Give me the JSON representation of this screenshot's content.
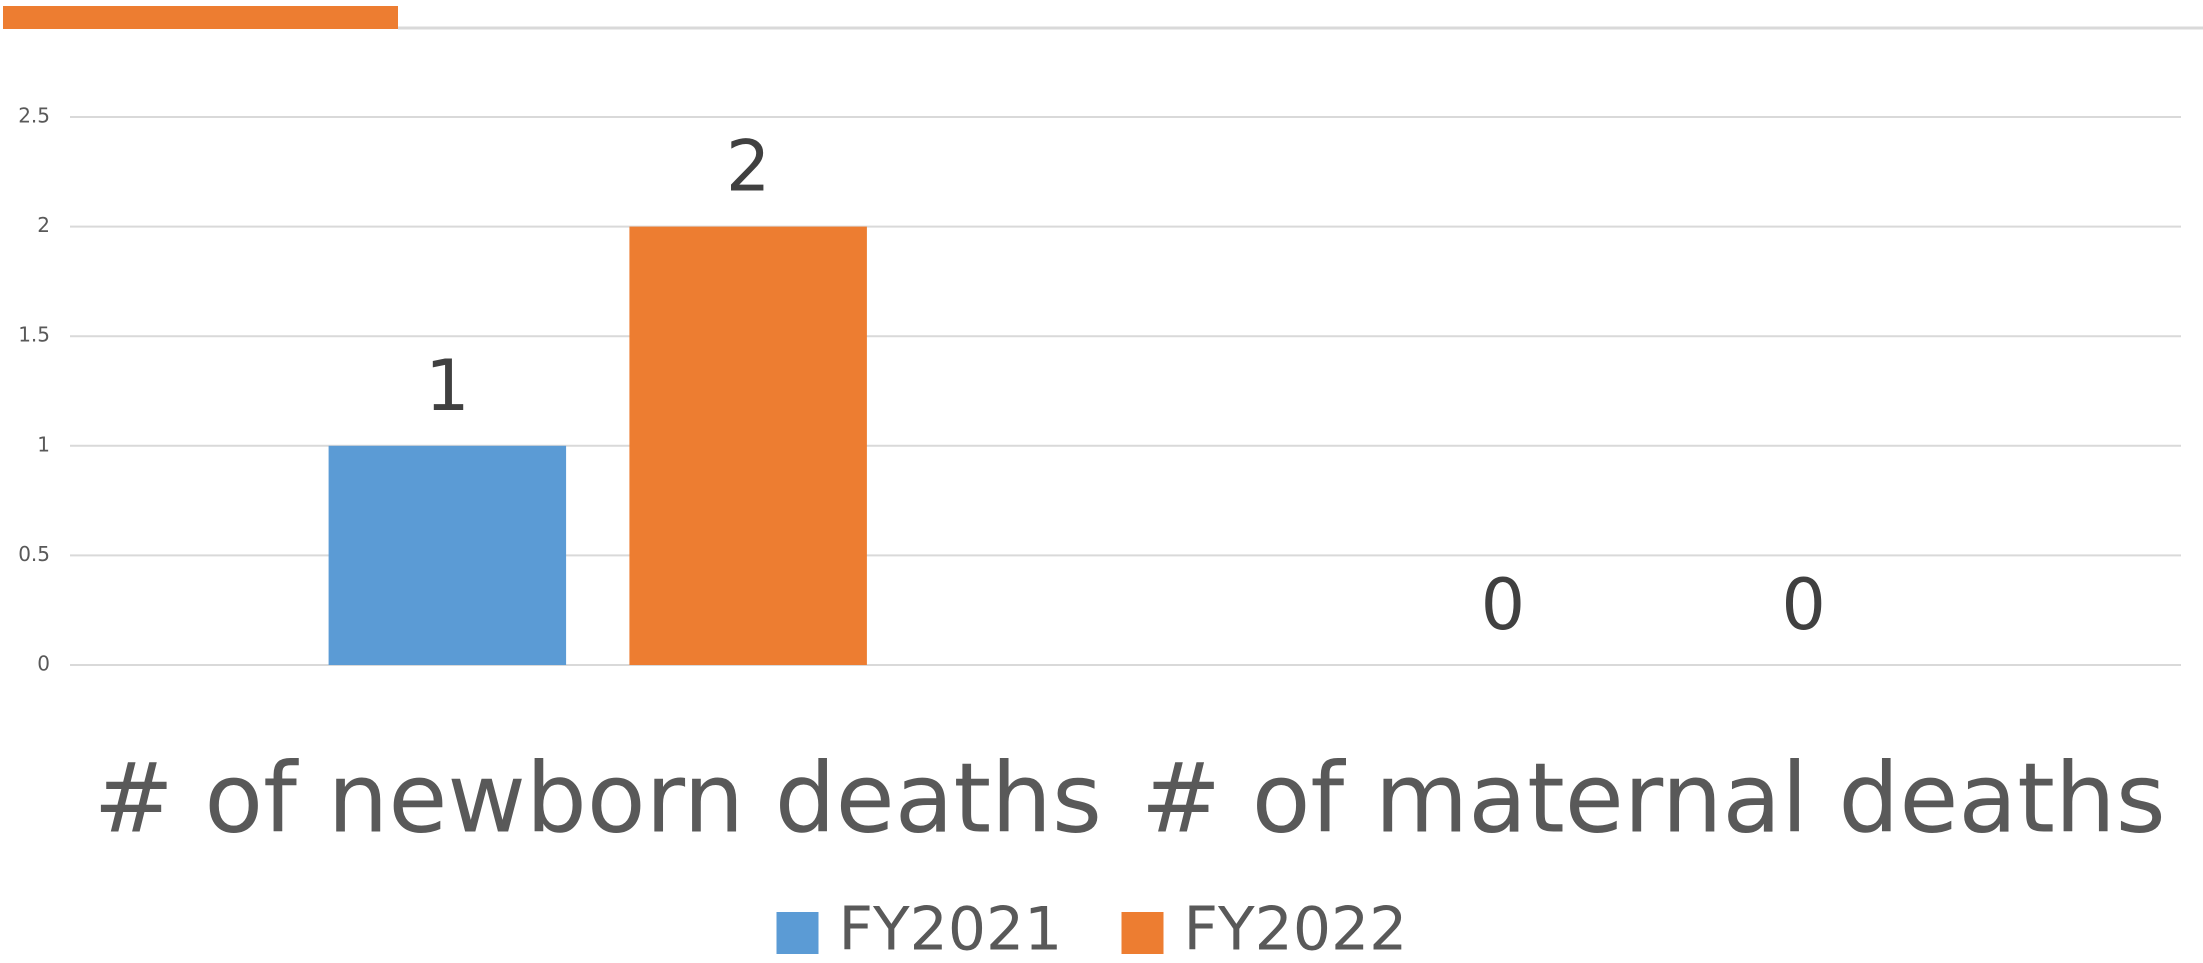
{
  "chart_data": {
    "type": "bar",
    "categories": [
      "# of newborn deaths",
      "# of maternal deaths"
    ],
    "series": [
      {
        "name": "FY2021",
        "color": "#5b9bd5",
        "values": [
          1,
          0
        ]
      },
      {
        "name": "FY2022",
        "color": "#ed7d31",
        "values": [
          2,
          0
        ]
      }
    ],
    "ylim": [
      0,
      2.5
    ],
    "yticks": [
      0,
      0.5,
      1,
      1.5,
      2,
      2.5
    ],
    "grid": true,
    "legend": "bottom"
  }
}
